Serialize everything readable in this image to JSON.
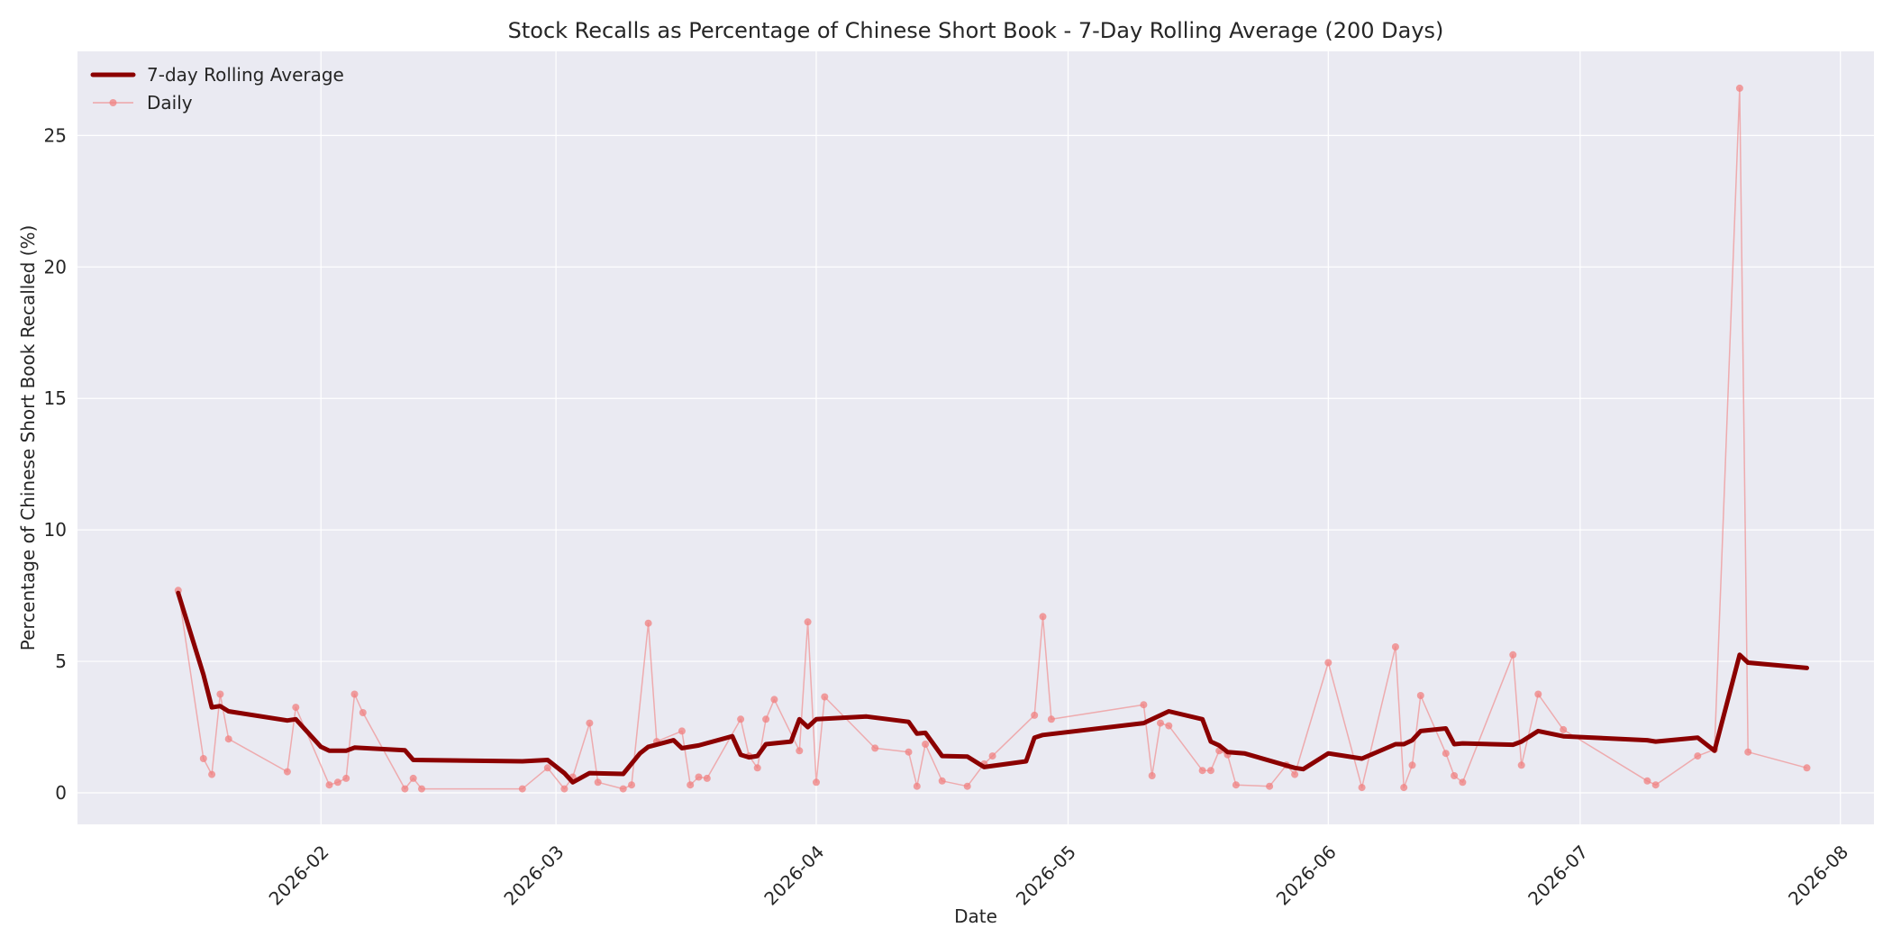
{
  "chart_data": {
    "type": "line",
    "title": "Stock Recalls as Percentage of Chinese Short Book - 7-Day Rolling Average (200 Days)",
    "xlabel": "Date",
    "ylabel": "Percentage of Chinese Short Book Recalled (%)",
    "xlim": [
      "2026-01-03",
      "2026-08-05"
    ],
    "ylim": [
      -1.2,
      28.2
    ],
    "x_ticks": [
      "2026-02-01",
      "2026-03-01",
      "2026-04-01",
      "2026-05-01",
      "2026-06-01",
      "2026-07-01",
      "2026-08-01"
    ],
    "x_tick_labels": [
      "2026-02",
      "2026-03",
      "2026-04",
      "2026-05",
      "2026-06",
      "2026-07",
      "2026-08"
    ],
    "y_ticks": [
      0,
      5,
      10,
      15,
      20,
      25
    ],
    "y_tick_labels": [
      "0",
      "5",
      "10",
      "15",
      "20",
      "25"
    ],
    "grid": true,
    "legend_position": "top-left",
    "series": [
      {
        "name": "7-day Rolling Average",
        "color": "#8b0000",
        "style": "thick-line",
        "points": [
          [
            "2026-01-15",
            7.6
          ],
          [
            "2026-01-18",
            4.5
          ],
          [
            "2026-01-19",
            3.25
          ],
          [
            "2026-01-20",
            3.3
          ],
          [
            "2026-01-21",
            3.1
          ],
          [
            "2026-01-28",
            2.75
          ],
          [
            "2026-01-29",
            2.8
          ],
          [
            "2026-02-01",
            1.75
          ],
          [
            "2026-02-02",
            1.6
          ],
          [
            "2026-02-04",
            1.6
          ],
          [
            "2026-02-05",
            1.72
          ],
          [
            "2026-02-11",
            1.62
          ],
          [
            "2026-02-12",
            1.25
          ],
          [
            "2026-02-25",
            1.2
          ],
          [
            "2026-02-28",
            1.25
          ],
          [
            "2026-03-02",
            0.75
          ],
          [
            "2026-03-03",
            0.4
          ],
          [
            "2026-03-05",
            0.75
          ],
          [
            "2026-03-09",
            0.72
          ],
          [
            "2026-03-11",
            1.5
          ],
          [
            "2026-03-12",
            1.75
          ],
          [
            "2026-03-15",
            2.0
          ],
          [
            "2026-03-16",
            1.7
          ],
          [
            "2026-03-18",
            1.8
          ],
          [
            "2026-03-22",
            2.15
          ],
          [
            "2026-03-23",
            1.45
          ],
          [
            "2026-03-24",
            1.35
          ],
          [
            "2026-03-25",
            1.4
          ],
          [
            "2026-03-26",
            1.85
          ],
          [
            "2026-03-29",
            1.95
          ],
          [
            "2026-03-30",
            2.8
          ],
          [
            "2026-03-31",
            2.5
          ],
          [
            "2026-04-01",
            2.8
          ],
          [
            "2026-04-07",
            2.9
          ],
          [
            "2026-04-12",
            2.7
          ],
          [
            "2026-04-13",
            2.25
          ],
          [
            "2026-04-14",
            2.28
          ],
          [
            "2026-04-16",
            1.4
          ],
          [
            "2026-04-19",
            1.38
          ],
          [
            "2026-04-21",
            0.98
          ],
          [
            "2026-04-26",
            1.2
          ],
          [
            "2026-04-27",
            2.1
          ],
          [
            "2026-04-28",
            2.2
          ],
          [
            "2026-05-10",
            2.65
          ],
          [
            "2026-05-13",
            3.1
          ],
          [
            "2026-05-17",
            2.8
          ],
          [
            "2026-05-18",
            1.95
          ],
          [
            "2026-05-19",
            1.8
          ],
          [
            "2026-05-20",
            1.55
          ],
          [
            "2026-05-22",
            1.5
          ],
          [
            "2026-05-28",
            0.95
          ],
          [
            "2026-05-29",
            0.9
          ],
          [
            "2026-06-01",
            1.5
          ],
          [
            "2026-06-05",
            1.3
          ],
          [
            "2026-06-09",
            1.85
          ],
          [
            "2026-06-10",
            1.85
          ],
          [
            "2026-06-11",
            2.0
          ],
          [
            "2026-06-12",
            2.35
          ],
          [
            "2026-06-15",
            2.45
          ],
          [
            "2026-06-16",
            1.85
          ],
          [
            "2026-06-17",
            1.88
          ],
          [
            "2026-06-23",
            1.83
          ],
          [
            "2026-06-24",
            1.95
          ],
          [
            "2026-06-26",
            2.35
          ],
          [
            "2026-06-29",
            2.15
          ],
          [
            "2026-07-09",
            2.0
          ],
          [
            "2026-07-10",
            1.95
          ],
          [
            "2026-07-15",
            2.1
          ],
          [
            "2026-07-17",
            1.6
          ],
          [
            "2026-07-20",
            5.25
          ],
          [
            "2026-07-21",
            4.95
          ],
          [
            "2026-07-28",
            4.75
          ]
        ]
      },
      {
        "name": "Daily",
        "color": "#f08080",
        "style": "thin-line-markers",
        "points": [
          [
            "2026-01-15",
            7.7
          ],
          [
            "2026-01-18",
            1.3
          ],
          [
            "2026-01-19",
            0.7
          ],
          [
            "2026-01-20",
            3.75
          ],
          [
            "2026-01-21",
            2.05
          ],
          [
            "2026-01-28",
            0.8
          ],
          [
            "2026-01-29",
            3.25
          ],
          [
            "2026-02-02",
            0.3
          ],
          [
            "2026-02-03",
            0.4
          ],
          [
            "2026-02-04",
            0.55
          ],
          [
            "2026-02-05",
            3.75
          ],
          [
            "2026-02-06",
            3.05
          ],
          [
            "2026-02-11",
            0.15
          ],
          [
            "2026-02-12",
            0.55
          ],
          [
            "2026-02-13",
            0.15
          ],
          [
            "2026-02-25",
            0.15
          ],
          [
            "2026-02-28",
            0.95
          ],
          [
            "2026-03-02",
            0.15
          ],
          [
            "2026-03-03",
            0.6
          ],
          [
            "2026-03-05",
            2.65
          ],
          [
            "2026-03-06",
            0.4
          ],
          [
            "2026-03-09",
            0.15
          ],
          [
            "2026-03-10",
            0.3
          ],
          [
            "2026-03-12",
            6.45
          ],
          [
            "2026-03-13",
            1.95
          ],
          [
            "2026-03-16",
            2.35
          ],
          [
            "2026-03-17",
            0.3
          ],
          [
            "2026-03-18",
            0.6
          ],
          [
            "2026-03-19",
            0.55
          ],
          [
            "2026-03-23",
            2.8
          ],
          [
            "2026-03-24",
            1.4
          ],
          [
            "2026-03-25",
            0.95
          ],
          [
            "2026-03-26",
            2.8
          ],
          [
            "2026-03-27",
            3.55
          ],
          [
            "2026-03-30",
            1.6
          ],
          [
            "2026-03-31",
            6.5
          ],
          [
            "2026-04-01",
            0.4
          ],
          [
            "2026-04-02",
            3.65
          ],
          [
            "2026-04-08",
            1.7
          ],
          [
            "2026-04-12",
            1.55
          ],
          [
            "2026-04-13",
            0.25
          ],
          [
            "2026-04-14",
            1.85
          ],
          [
            "2026-04-16",
            0.45
          ],
          [
            "2026-04-19",
            0.25
          ],
          [
            "2026-04-21",
            1.1
          ],
          [
            "2026-04-22",
            1.4
          ],
          [
            "2026-04-27",
            2.95
          ],
          [
            "2026-04-28",
            6.7
          ],
          [
            "2026-04-29",
            2.8
          ],
          [
            "2026-05-10",
            3.35
          ],
          [
            "2026-05-11",
            0.65
          ],
          [
            "2026-05-12",
            2.65
          ],
          [
            "2026-05-13",
            2.55
          ],
          [
            "2026-05-17",
            0.85
          ],
          [
            "2026-05-18",
            0.85
          ],
          [
            "2026-05-19",
            1.6
          ],
          [
            "2026-05-20",
            1.45
          ],
          [
            "2026-05-21",
            0.3
          ],
          [
            "2026-05-25",
            0.25
          ],
          [
            "2026-05-27",
            1.05
          ],
          [
            "2026-05-28",
            0.7
          ],
          [
            "2026-06-01",
            4.95
          ],
          [
            "2026-06-05",
            0.2
          ],
          [
            "2026-06-09",
            5.55
          ],
          [
            "2026-06-10",
            0.2
          ],
          [
            "2026-06-11",
            1.05
          ],
          [
            "2026-06-12",
            3.7
          ],
          [
            "2026-06-15",
            1.5
          ],
          [
            "2026-06-16",
            0.65
          ],
          [
            "2026-06-17",
            0.4
          ],
          [
            "2026-06-23",
            5.25
          ],
          [
            "2026-06-24",
            1.05
          ],
          [
            "2026-06-26",
            3.75
          ],
          [
            "2026-06-29",
            2.4
          ],
          [
            "2026-07-09",
            0.45
          ],
          [
            "2026-07-10",
            0.3
          ],
          [
            "2026-07-15",
            1.4
          ],
          [
            "2026-07-17",
            1.65
          ],
          [
            "2026-07-20",
            26.8
          ],
          [
            "2026-07-21",
            1.55
          ],
          [
            "2026-07-28",
            0.95
          ]
        ]
      }
    ]
  }
}
